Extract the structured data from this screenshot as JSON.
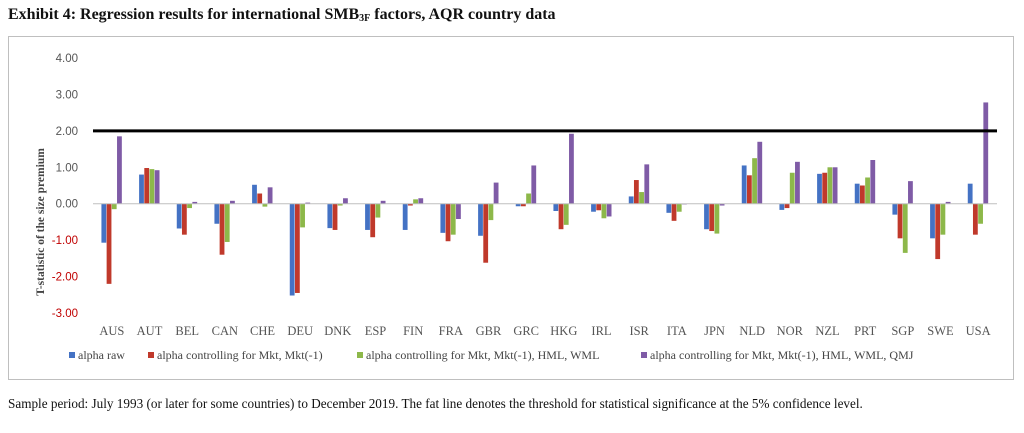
{
  "title": {
    "prefix": "Exhibit 4: Regression results for international SMB",
    "subscript": "3F",
    "suffix": " factors, AQR country data"
  },
  "footnote": "Sample period: July 1993 (or later for some countries) to December 2019. The fat line denotes the threshold for statistical significance at the 5% confidence level.",
  "colors": {
    "series": [
      "#4472C4",
      "#C0392B",
      "#8DB84A",
      "#7F5BA6"
    ],
    "threshold": "#000000",
    "tick_text": "#C00000",
    "axis_text": "#555555"
  },
  "chart_data": {
    "type": "bar",
    "title": "",
    "xlabel": "",
    "ylabel": "T-statistic of the size premium",
    "ylim": [
      -3,
      4
    ],
    "yticks": [
      "4.00",
      "3.00",
      "2.00",
      "1.00",
      "0.00",
      "-1.00",
      "-2.00",
      "-3.00"
    ],
    "ytick_values": [
      4,
      3,
      2,
      1,
      0,
      -1,
      -2,
      -3
    ],
    "grid": false,
    "legend_position": "bottom",
    "threshold": 2.0,
    "categories": [
      "AUS",
      "AUT",
      "BEL",
      "CAN",
      "CHE",
      "DEU",
      "DNK",
      "ESP",
      "FIN",
      "FRA",
      "GBR",
      "GRC",
      "HKG",
      "IRL",
      "ISR",
      "ITA",
      "JPN",
      "NLD",
      "NOR",
      "NZL",
      "PRT",
      "SGP",
      "SWE",
      "USA"
    ],
    "series": [
      {
        "name": "alpha raw",
        "values": [
          -1.07,
          0.8,
          -0.68,
          -0.55,
          0.52,
          -2.52,
          -0.67,
          -0.72,
          -0.72,
          -0.8,
          -0.88,
          -0.07,
          -0.2,
          -0.22,
          0.2,
          -0.25,
          -0.7,
          1.05,
          -0.17,
          0.82,
          0.55,
          -0.3,
          -0.95,
          0.55
        ]
      },
      {
        "name": "alpha controlling for Mkt, Mkt(-1)",
        "values": [
          -2.2,
          0.98,
          -0.85,
          -1.4,
          0.28,
          -2.45,
          -0.72,
          -0.92,
          -0.05,
          -1.03,
          -1.62,
          -0.07,
          -0.7,
          -0.18,
          0.65,
          -0.47,
          -0.75,
          0.78,
          -0.12,
          0.85,
          0.5,
          -0.95,
          -1.52,
          -0.85
        ]
      },
      {
        "name": "alpha controlling for Mkt, Mkt(-1), HML, WML",
        "values": [
          -0.15,
          0.95,
          -0.12,
          -1.05,
          -0.08,
          -0.65,
          -0.05,
          -0.38,
          0.12,
          -0.85,
          -0.45,
          0.28,
          -0.58,
          -0.4,
          0.32,
          -0.22,
          -0.82,
          1.25,
          0.85,
          1.0,
          0.72,
          -1.35,
          -0.85,
          -0.55
        ]
      },
      {
        "name": "alpha controlling for Mkt, Mkt(-1), HML, WML, QMJ",
        "values": [
          1.85,
          0.92,
          0.05,
          0.08,
          0.45,
          0.03,
          0.15,
          0.08,
          0.15,
          -0.42,
          0.58,
          1.05,
          1.92,
          -0.35,
          1.08,
          -0.02,
          -0.05,
          1.7,
          1.15,
          1.0,
          1.2,
          0.62,
          0.05,
          2.78
        ]
      }
    ]
  }
}
